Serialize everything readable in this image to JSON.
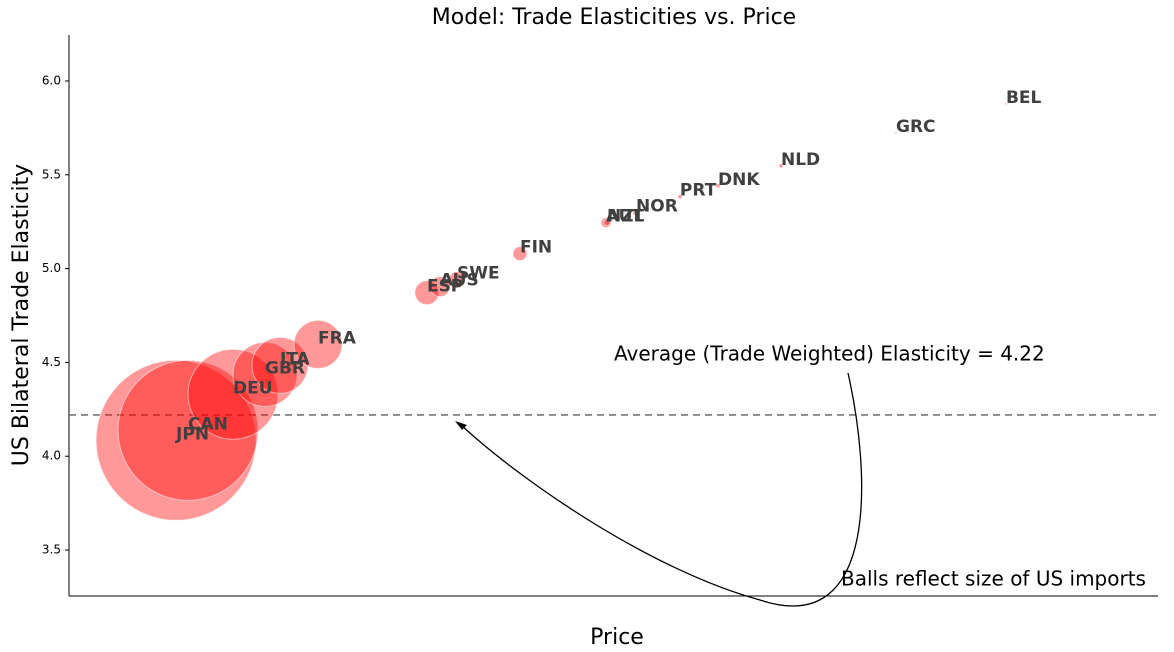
{
  "chart_data": {
    "type": "scatter",
    "title": "Model: Trade Elasticities vs. Price",
    "xlabel": "Price",
    "ylabel": "US Bilateral Trade Elasticity",
    "annotations": [
      "Average (Trade Weighted) Elasticity = 4.22",
      "Balls reflect size of US imports"
    ],
    "reference_line": 4.22,
    "color": "#ff0000",
    "labels": [
      "JPN",
      "CAN",
      "DEU",
      "GBR",
      "ITA",
      "FRA",
      "ESP",
      "AUS",
      "SWE",
      "FIN",
      "AUT",
      "NZL",
      "NOR",
      "PRT",
      "DNK",
      "NLD",
      "GRC",
      "BEL"
    ],
    "x": [
      9.83,
      10.93,
      15.06,
      18.0,
      19.37,
      22.87,
      32.87,
      34.07,
      35.63,
      41.41,
      49.31,
      49.4,
      52.07,
      56.1,
      59.6,
      65.38,
      75.94,
      86.04
    ],
    "values": [
      4.085,
      4.138,
      4.33,
      4.436,
      4.484,
      4.596,
      4.872,
      4.904,
      4.941,
      5.08,
      5.245,
      5.245,
      5.298,
      5.383,
      5.441,
      5.548,
      5.723,
      5.878
    ],
    "sizes": [
      80,
      70,
      45,
      32,
      28,
      24,
      12,
      10,
      8,
      7,
      5,
      3,
      3,
      2,
      2,
      2,
      1,
      1
    ],
    "xlim": [
      0,
      100
    ],
    "ylim": [
      3.255,
      6.245
    ],
    "yticks": [
      3.5,
      {
        "value": 4,
        "label": "4.0"
      },
      4.5,
      {
        "value": 5,
        "label": "5.0"
      },
      5.5,
      {
        "value": 6,
        "label": "6.0"
      }
    ]
  }
}
